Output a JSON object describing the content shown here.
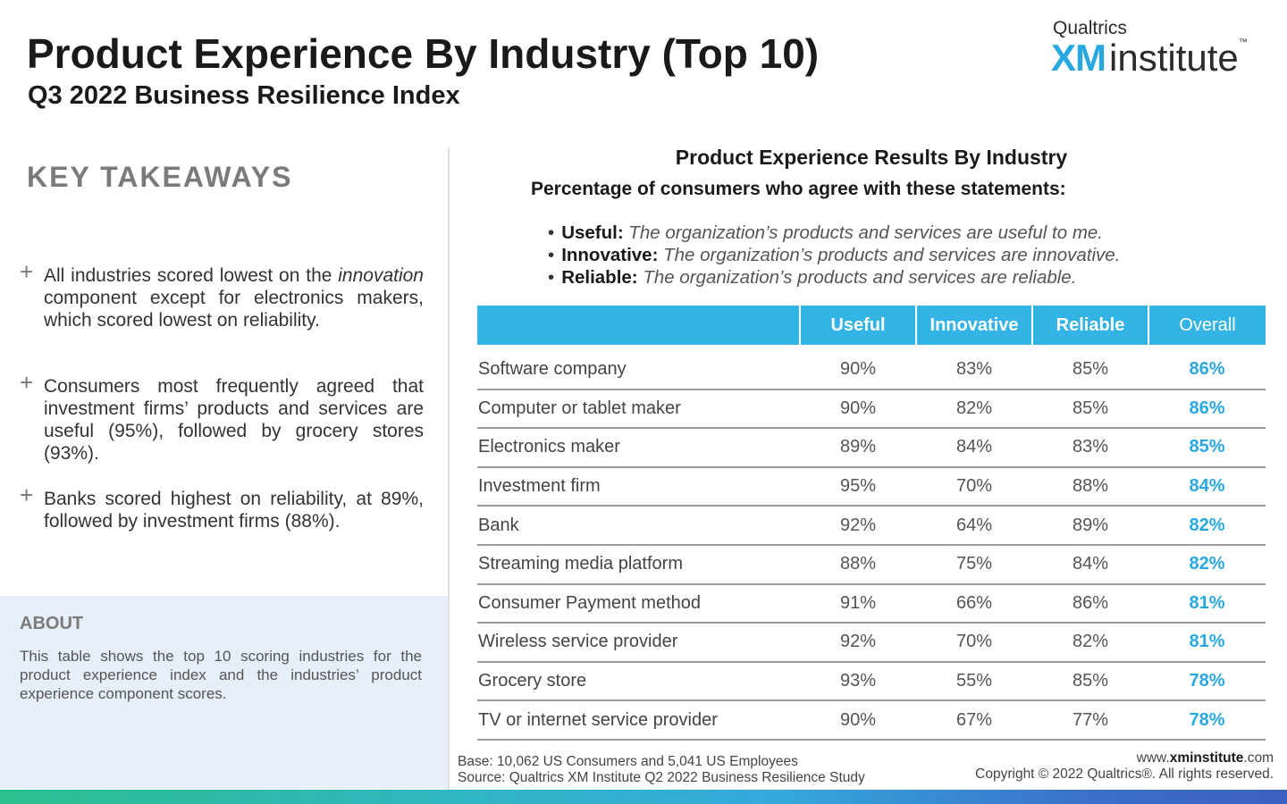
{
  "header": {
    "title": "Product Experience By Industry (Top 10)",
    "subtitle": "Q3 2022 Business Resilience Index"
  },
  "logo": {
    "top": "Qualtrics",
    "xm": "XM",
    "institute": "institute",
    "tm": "™"
  },
  "takeaways": {
    "heading": "KEY TAKEAWAYS",
    "items": [
      {
        "pre": "All industries scored lowest on the ",
        "em": "innovation",
        "post": " component except for electronics makers, which scored lowest on reliability."
      },
      {
        "pre": "Consumers most frequently agreed that investment firms’ products and services are useful (95%), followed by grocery stores (93%).",
        "em": "",
        "post": ""
      },
      {
        "pre": "Banks scored highest on reliability, at 89%, followed by investment firms (88%).",
        "em": "",
        "post": ""
      }
    ]
  },
  "about": {
    "heading": "ABOUT",
    "text": "This table shows the top 10 scoring industries for the product experience index and the industries’ product experience component scores."
  },
  "chart_data": {
    "type": "table",
    "title": "Product Experience Results By Industry",
    "subtitle": "Percentage of consumers who agree with these statements:",
    "definitions": [
      {
        "term": "Useful:",
        "text": "The organization’s products and services are useful to me."
      },
      {
        "term": "Innovative:",
        "text": "The organization’s products and services are innovative."
      },
      {
        "term": "Reliable:",
        "text": "The organization’s products and services are reliable."
      }
    ],
    "columns": [
      "",
      "Useful",
      "Innovative",
      "Reliable",
      "Overall"
    ],
    "rows": [
      {
        "industry": "Software company",
        "useful": "90%",
        "innovative": "83%",
        "reliable": "85%",
        "overall": "86%"
      },
      {
        "industry": "Computer or tablet maker",
        "useful": "90%",
        "innovative": "82%",
        "reliable": "85%",
        "overall": "86%"
      },
      {
        "industry": "Electronics maker",
        "useful": "89%",
        "innovative": "84%",
        "reliable": "83%",
        "overall": "85%"
      },
      {
        "industry": "Investment firm",
        "useful": "95%",
        "innovative": "70%",
        "reliable": "88%",
        "overall": "84%"
      },
      {
        "industry": "Bank",
        "useful": "92%",
        "innovative": "64%",
        "reliable": "89%",
        "overall": "82%"
      },
      {
        "industry": "Streaming media platform",
        "useful": "88%",
        "innovative": "75%",
        "reliable": "84%",
        "overall": "82%"
      },
      {
        "industry": "Consumer Payment method",
        "useful": "91%",
        "innovative": "66%",
        "reliable": "86%",
        "overall": "81%"
      },
      {
        "industry": "Wireless service provider",
        "useful": "92%",
        "innovative": "70%",
        "reliable": "82%",
        "overall": "81%"
      },
      {
        "industry": "Grocery store",
        "useful": "93%",
        "innovative": "55%",
        "reliable": "85%",
        "overall": "78%"
      },
      {
        "industry": "TV or internet service provider",
        "useful": "90%",
        "innovative": "67%",
        "reliable": "77%",
        "overall": "78%"
      }
    ]
  },
  "footer": {
    "base": "Base: 10,062 US Consumers and 5,041 US Employees",
    "source": "Source: Qualtrics XM Institute Q2 2022 Business Resilience Study",
    "url_pre": "www.",
    "url_bold": "xminstitute",
    "url_post": ".com",
    "copyright": "Copyright © 2022 Qualtrics®. All rights reserved."
  },
  "colors": {
    "accent": "#34b4e4",
    "overall_text": "#29a8e0",
    "about_bg": "#e6eef7"
  }
}
